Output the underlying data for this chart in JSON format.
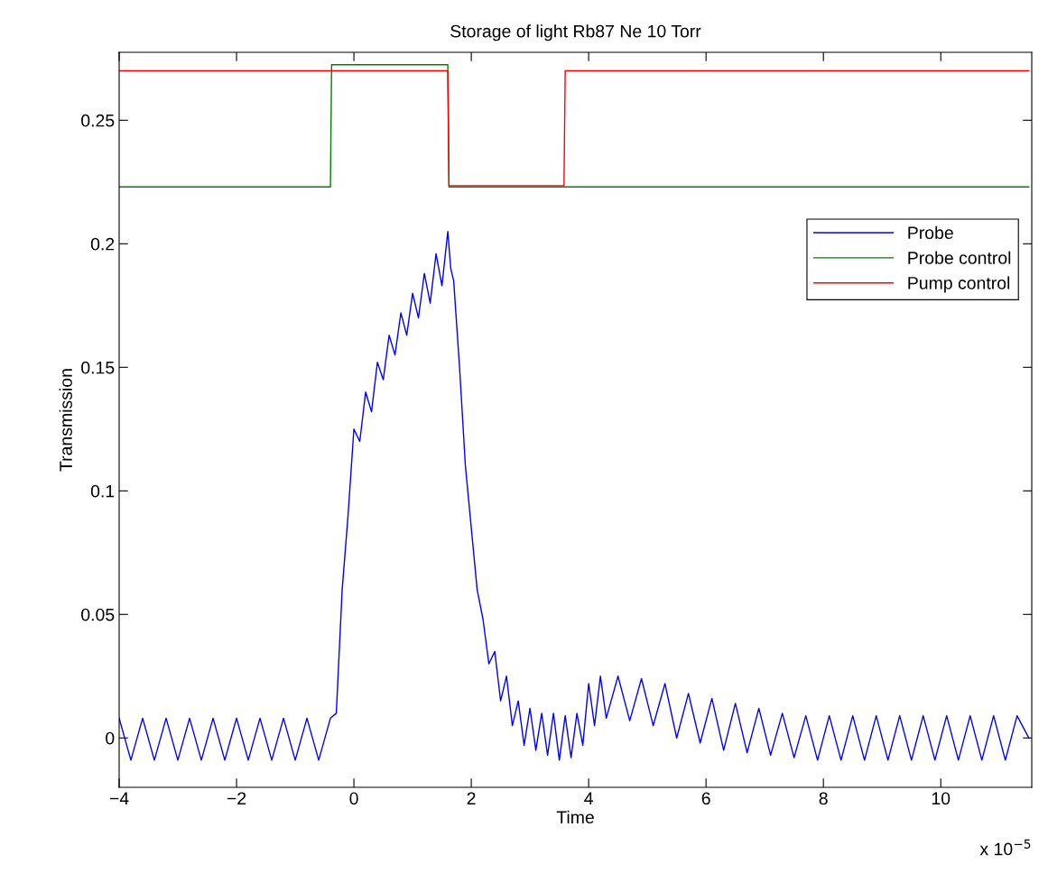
{
  "chart_data": {
    "type": "line",
    "title": "Storage of light Rb87 Ne 10 Torr",
    "xlabel": "Time",
    "ylabel": "Transmission",
    "annotations": [
      "x 10$^{−5}$"
    ],
    "xlim": [
      -4,
      11.55
    ],
    "ylim": [
      -0.02,
      0.2775
    ],
    "xticks": [
      {
        "value": -4,
        "label": "−4"
      },
      {
        "value": -2,
        "label": "−2"
      },
      0,
      2,
      4,
      6,
      8,
      10
    ],
    "yticks": [
      0,
      0.05,
      0.1,
      0.15,
      0.2,
      0.25
    ],
    "grid": false,
    "legend": "right",
    "line_style": "solid",
    "series": [
      {
        "name": "Probe",
        "color": "#0000ff",
        "x": [
          -4,
          -3.8,
          -3.6,
          -3.4,
          -3.2,
          -3,
          -2.8,
          -2.6,
          -2.4,
          -2.2,
          -2,
          -1.8,
          -1.6,
          -1.4,
          -1.2,
          -1,
          -0.8,
          -0.6,
          -0.4,
          -0.3,
          -0.2,
          -0.1,
          0,
          0.1,
          0.2,
          0.3,
          0.4,
          0.5,
          0.6,
          0.7,
          0.8,
          0.9,
          1.0,
          1.1,
          1.2,
          1.3,
          1.4,
          1.5,
          1.6,
          1.65,
          1.7,
          1.8,
          1.9,
          2.0,
          2.1,
          2.2,
          2.3,
          2.4,
          2.5,
          2.6,
          2.7,
          2.8,
          2.9,
          3.0,
          3.1,
          3.2,
          3.3,
          3.4,
          3.5,
          3.6,
          3.7,
          3.8,
          3.9,
          4.0,
          4.1,
          4.2,
          4.3,
          4.5,
          4.7,
          4.9,
          5.1,
          5.3,
          5.5,
          5.7,
          5.9,
          6.1,
          6.3,
          6.5,
          6.7,
          6.9,
          7.1,
          7.3,
          7.5,
          7.7,
          7.9,
          8.1,
          8.3,
          8.5,
          8.7,
          8.9,
          9.1,
          9.3,
          9.5,
          9.7,
          9.9,
          10.1,
          10.3,
          10.5,
          10.7,
          10.9,
          11.1,
          11.3,
          11.5
        ],
        "values": [
          0.008,
          -0.009,
          0.008,
          -0.009,
          0.008,
          -0.009,
          0.008,
          -0.009,
          0.008,
          -0.009,
          0.008,
          -0.009,
          0.008,
          -0.009,
          0.008,
          -0.009,
          0.008,
          -0.009,
          0.008,
          0.01,
          0.06,
          0.09,
          0.125,
          0.12,
          0.14,
          0.132,
          0.152,
          0.145,
          0.163,
          0.155,
          0.172,
          0.163,
          0.18,
          0.17,
          0.188,
          0.176,
          0.196,
          0.183,
          0.205,
          0.19,
          0.185,
          0.15,
          0.11,
          0.085,
          0.06,
          0.048,
          0.03,
          0.035,
          0.015,
          0.025,
          0.005,
          0.015,
          -0.003,
          0.012,
          -0.005,
          0.01,
          -0.007,
          0.01,
          -0.009,
          0.009,
          -0.008,
          0.01,
          -0.003,
          0.022,
          0.005,
          0.025,
          0.008,
          0.025,
          0.007,
          0.024,
          0.005,
          0.022,
          0.0,
          0.018,
          -0.002,
          0.016,
          -0.005,
          0.014,
          -0.006,
          0.012,
          -0.007,
          0.01,
          -0.008,
          0.009,
          -0.009,
          0.009,
          -0.009,
          0.009,
          -0.009,
          0.009,
          -0.009,
          0.009,
          -0.009,
          0.009,
          -0.009,
          0.009,
          -0.009,
          0.009,
          -0.009,
          0.009,
          -0.009,
          0.009,
          0.0
        ]
      },
      {
        "name": "Probe control",
        "color": "#008000",
        "x": [
          -4,
          -0.4,
          -0.38,
          1.6,
          1.62,
          11.5
        ],
        "values": [
          0.223,
          0.223,
          0.2725,
          0.2725,
          0.223,
          0.223
        ]
      },
      {
        "name": "Pump control",
        "color": "#ff0000",
        "x": [
          -4,
          1.6,
          1.62,
          3.58,
          3.6,
          11.5
        ],
        "values": [
          0.27,
          0.27,
          0.2235,
          0.2235,
          0.27,
          0.27
        ]
      }
    ]
  }
}
